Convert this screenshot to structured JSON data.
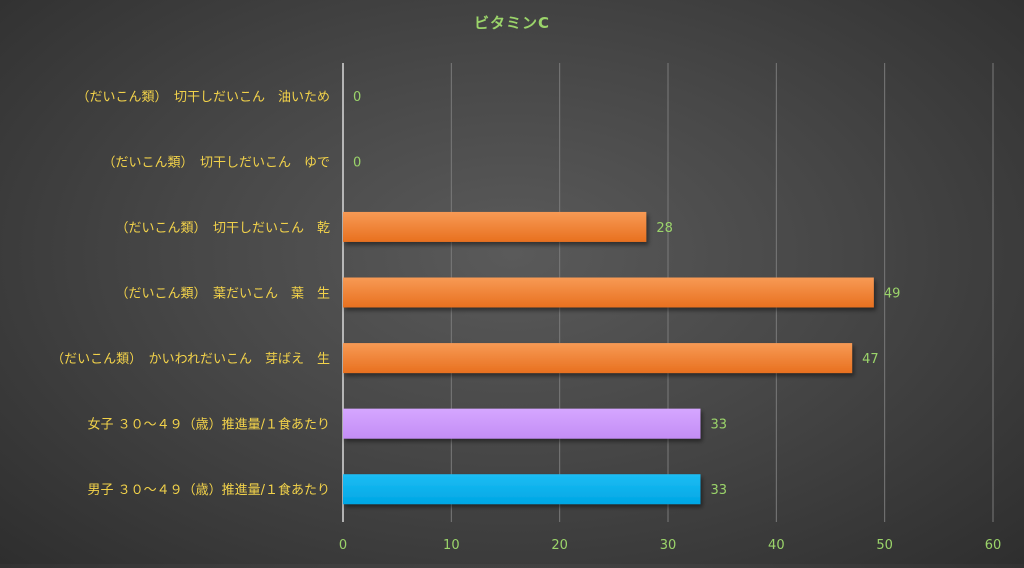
{
  "chart_data": {
    "type": "bar",
    "orientation": "horizontal",
    "title": "ビタミンC",
    "xlabel": "",
    "ylabel": "",
    "xlim": [
      0,
      60
    ],
    "ticks": [
      0,
      10,
      20,
      30,
      40,
      50,
      60
    ],
    "grid": true,
    "legend": "none",
    "categories": [
      "（だいこん類）　切干しだいこん　油いため",
      "（だいこん類）　切干しだいこん　ゆで",
      "（だいこん類）　切干しだいこん　乾",
      "（だいこん類）　葉だいこん　葉　生",
      "（だいこん類）　かいわれだいこん　芽ばえ　生",
      "女子 ３０～４９（歳）推進量/１食あたり",
      "男子 ３０～４９（歳）推進量/１食あたり"
    ],
    "values": [
      0,
      0,
      28,
      49,
      47,
      33,
      33
    ],
    "value_labels": [
      "0",
      "0",
      "28",
      "49",
      "47",
      "33",
      "33"
    ],
    "colors": [
      "#ed7d31",
      "#ed7d31",
      "#ed7d31",
      "#ed7d31",
      "#ed7d31",
      "#cc99ff",
      "#00b0f0"
    ]
  }
}
